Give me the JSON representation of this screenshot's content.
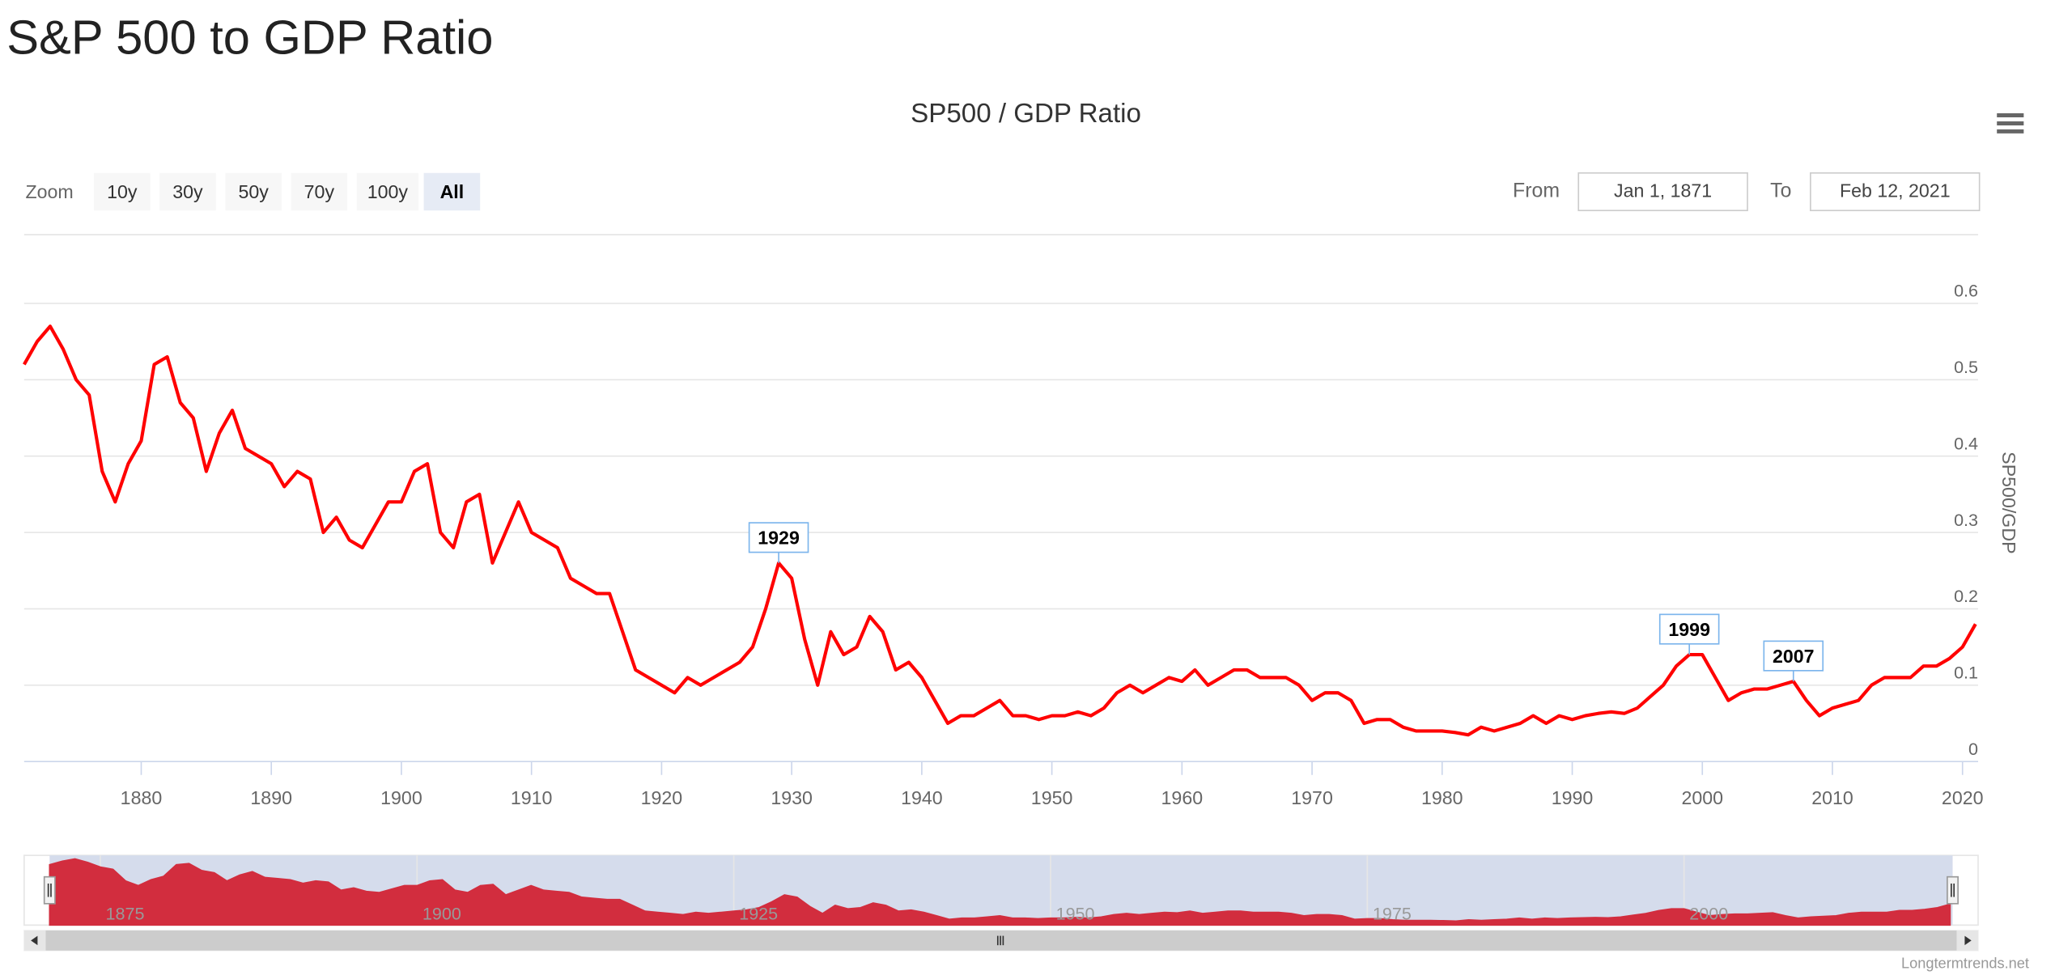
{
  "chart_data": {
    "type": "line",
    "page_title": "S&P 500 to GDP Ratio",
    "title": "SP500 / GDP Ratio",
    "ylabel": "SP500/GDP",
    "credit": "Longtermtrends.net",
    "zoom": {
      "label": "Zoom",
      "buttons": [
        "10y",
        "30y",
        "50y",
        "70y",
        "100y",
        "All"
      ],
      "selected": 5
    },
    "range": {
      "from_label": "From",
      "from": "Jan 1, 1871",
      "to_label": "To",
      "to": "Feb 12, 2021"
    },
    "x": [
      1871,
      1872,
      1873,
      1874,
      1875,
      1876,
      1877,
      1878,
      1879,
      1880,
      1881,
      1882,
      1883,
      1884,
      1885,
      1886,
      1887,
      1888,
      1889,
      1890,
      1891,
      1892,
      1893,
      1894,
      1895,
      1896,
      1897,
      1898,
      1899,
      1900,
      1901,
      1902,
      1903,
      1904,
      1905,
      1906,
      1907,
      1908,
      1909,
      1910,
      1911,
      1912,
      1913,
      1914,
      1915,
      1916,
      1917,
      1918,
      1919,
      1920,
      1921,
      1922,
      1923,
      1924,
      1925,
      1926,
      1927,
      1928,
      1929,
      1930,
      1931,
      1932,
      1933,
      1934,
      1935,
      1936,
      1937,
      1938,
      1939,
      1940,
      1941,
      1942,
      1943,
      1944,
      1945,
      1946,
      1947,
      1948,
      1949,
      1950,
      1951,
      1952,
      1953,
      1954,
      1955,
      1956,
      1957,
      1958,
      1959,
      1960,
      1961,
      1962,
      1963,
      1964,
      1965,
      1966,
      1967,
      1968,
      1969,
      1970,
      1971,
      1972,
      1973,
      1974,
      1975,
      1976,
      1977,
      1978,
      1979,
      1980,
      1981,
      1982,
      1983,
      1984,
      1985,
      1986,
      1987,
      1988,
      1989,
      1990,
      1991,
      1992,
      1993,
      1994,
      1995,
      1996,
      1997,
      1998,
      1999,
      2000,
      2001,
      2002,
      2003,
      2004,
      2005,
      2006,
      2007,
      2008,
      2009,
      2010,
      2011,
      2012,
      2013,
      2014,
      2015,
      2016,
      2017,
      2018,
      2019,
      2020,
      2021
    ],
    "series": [
      {
        "color": "#ff0000",
        "values": [
          0.52,
          0.55,
          0.57,
          0.54,
          0.5,
          0.48,
          0.38,
          0.34,
          0.39,
          0.42,
          0.52,
          0.53,
          0.47,
          0.45,
          0.38,
          0.43,
          0.46,
          0.41,
          0.4,
          0.39,
          0.36,
          0.38,
          0.37,
          0.3,
          0.32,
          0.29,
          0.28,
          0.31,
          0.34,
          0.34,
          0.38,
          0.39,
          0.3,
          0.28,
          0.34,
          0.35,
          0.26,
          0.3,
          0.34,
          0.3,
          0.29,
          0.28,
          0.24,
          0.23,
          0.22,
          0.22,
          0.17,
          0.12,
          0.11,
          0.1,
          0.09,
          0.11,
          0.1,
          0.11,
          0.12,
          0.13,
          0.15,
          0.2,
          0.26,
          0.24,
          0.16,
          0.1,
          0.17,
          0.14,
          0.15,
          0.19,
          0.17,
          0.12,
          0.13,
          0.11,
          0.08,
          0.05,
          0.06,
          0.06,
          0.07,
          0.08,
          0.06,
          0.06,
          0.055,
          0.06,
          0.06,
          0.065,
          0.06,
          0.07,
          0.09,
          0.1,
          0.09,
          0.1,
          0.11,
          0.105,
          0.12,
          0.1,
          0.11,
          0.12,
          0.12,
          0.11,
          0.11,
          0.11,
          0.1,
          0.08,
          0.09,
          0.09,
          0.08,
          0.05,
          0.055,
          0.055,
          0.045,
          0.04,
          0.04,
          0.04,
          0.038,
          0.035,
          0.045,
          0.04,
          0.045,
          0.05,
          0.06,
          0.05,
          0.06,
          0.055,
          0.06,
          0.063,
          0.065,
          0.063,
          0.07,
          0.085,
          0.1,
          0.125,
          0.14,
          0.14,
          0.11,
          0.08,
          0.09,
          0.095,
          0.095,
          0.1,
          0.105,
          0.08,
          0.06,
          0.07,
          0.075,
          0.08,
          0.1,
          0.11,
          0.11,
          0.11,
          0.125,
          0.125,
          0.135,
          0.15,
          0.18
        ]
      }
    ],
    "annotations": [
      {
        "x": 1929,
        "text": "1929"
      },
      {
        "x": 1999,
        "text": "1999"
      },
      {
        "x": 2007,
        "text": "2007"
      }
    ],
    "xlim": [
      1871,
      2021.2
    ],
    "xticks": [
      1880,
      1890,
      1900,
      1910,
      1920,
      1930,
      1940,
      1950,
      1960,
      1970,
      1980,
      1990,
      2000,
      2010,
      2020
    ],
    "ylim": [
      0,
      0.69
    ],
    "yticks": [
      0,
      0.1,
      0.2,
      0.3,
      0.4,
      0.5,
      0.6
    ],
    "grid": true,
    "navigator": {
      "xlim": [
        1871,
        2021.2
      ],
      "ylim": [
        0,
        0.6
      ],
      "xticks": [
        1875,
        1900,
        1925,
        1950,
        1975,
        2000
      ],
      "color": "#d22d3e"
    }
  }
}
